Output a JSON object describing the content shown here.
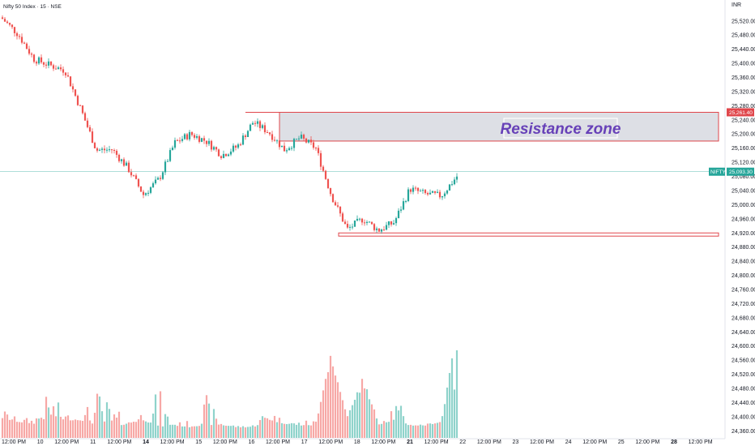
{
  "chart_data": {
    "type": "candlestick",
    "title": "Nifty 50 Index · 15 · NSE",
    "currency": "INR",
    "ylim": [
      24340,
      25570
    ],
    "y_ticks": [
      25520,
      25480,
      25440,
      25400,
      25360,
      25320,
      25280,
      25240,
      25200,
      25160,
      25120,
      25080,
      25040,
      25000,
      24960,
      24920,
      24880,
      24840,
      24800,
      24760,
      24720,
      24680,
      24640,
      24600,
      24560,
      24520,
      24480,
      24440,
      24400,
      24360
    ],
    "y_tick_labels": [
      "25,520.00",
      "25,480.00",
      "25,440.00",
      "25,400.00",
      "25,360.00",
      "25,320.00",
      "25,280.00",
      "25,240.00",
      "25,200.00",
      "25,160.00",
      "25,120.00",
      "25,080.00",
      "25,040.00",
      "25,000.00",
      "24,960.00",
      "24,920.00",
      "24,880.00",
      "24,840.00",
      "24,800.00",
      "24,760.00",
      "24,720.00",
      "24,680.00",
      "24,640.00",
      "24,600.00",
      "24,560.00",
      "24,520.00",
      "24,480.00",
      "24,440.00",
      "24,400.00",
      "24,360.00"
    ],
    "x_ticks": [
      "12:00 PM",
      "10",
      "12:00 PM",
      "11",
      "12:00 PM",
      "14",
      "12:00 PM",
      "15",
      "12:00 PM",
      "16",
      "12:00 PM",
      "17",
      "12:00 PM",
      "18",
      "12:00 PM",
      "21",
      "12:00 PM",
      "22",
      "12:00 PM",
      "23",
      "12:00 PM",
      "24",
      "12:00 PM",
      "25",
      "12:00 PM",
      "28",
      "12:00 PM"
    ],
    "x_ticks_bold": [
      "14",
      "21",
      "28"
    ],
    "anchors": [
      [
        25530,
        25522
      ],
      [
        25510,
        25455
      ],
      [
        25440,
        25385
      ],
      [
        25395,
        25395
      ],
      [
        25400,
        25360
      ],
      [
        25310,
        25230
      ],
      [
        25160,
        25148
      ],
      [
        25160,
        25152
      ],
      [
        25160,
        25048
      ],
      [
        25030,
        25026
      ],
      [
        25060,
        25085
      ],
      [
        25150,
        25200
      ],
      [
        25200,
        25200
      ],
      [
        25190,
        25170
      ],
      [
        25140,
        25140
      ],
      [
        25150,
        25180
      ],
      [
        25220,
        25248
      ],
      [
        25230,
        25180
      ],
      [
        25160,
        25150
      ],
      [
        25190,
        25190
      ],
      [
        25170,
        25150
      ],
      [
        25060,
        24990
      ],
      [
        24940,
        24920
      ],
      [
        24950,
        24970
      ],
      [
        24925,
        24930
      ],
      [
        24900,
        25000
      ],
      [
        25050,
        25040
      ],
      [
        25020,
        25040
      ],
      [
        25010,
        25040
      ],
      [
        25050,
        25110
      ]
    ],
    "volume_anchors": [
      [
        0.35,
        0.22
      ],
      [
        0.22,
        0.18
      ],
      [
        0.25,
        0.16
      ],
      [
        0.55,
        0.24
      ],
      [
        0.3,
        0.2
      ],
      [
        0.22,
        0.2
      ],
      [
        0.6,
        0.15
      ],
      [
        0.4,
        0.12
      ],
      [
        0.18,
        0.16
      ],
      [
        0.35,
        0.2
      ],
      [
        0.6,
        0.12
      ],
      [
        0.18,
        0.14
      ],
      [
        0.2,
        0.12
      ],
      [
        0.5,
        0.15
      ],
      [
        0.2,
        0.14
      ],
      [
        0.14,
        0.12
      ],
      [
        0.16,
        0.12
      ],
      [
        0.4,
        0.2
      ],
      [
        0.18,
        0.16
      ],
      [
        0.2,
        0.14
      ],
      [
        0.22,
        0.14
      ],
      [
        0.6,
        1.0
      ],
      [
        0.3,
        0.2
      ],
      [
        0.55,
        0.7
      ],
      [
        0.25,
        0.15
      ],
      [
        0.55,
        0.2
      ],
      [
        0.16,
        0.14
      ],
      [
        0.16,
        0.14
      ],
      [
        0.2,
        0.18
      ],
      [
        0.6,
        1.25
      ]
    ],
    "current_price_label": "25,093.30",
    "current_price": 25093.3,
    "ticker_label": "NIFTY",
    "resistance_zone": {
      "label": "Resistance zone",
      "top": 25261.4,
      "bottom": 25180,
      "top_label": "25,261.40"
    },
    "support_zone": {
      "top": 24920,
      "bottom": 24911
    },
    "colors": {
      "up": "#26a69a",
      "down": "#ef5350",
      "up_volume": "#8fd3cb",
      "down_volume": "#f7a8a6",
      "zone_fill": "#d1d4dc",
      "zone_border": "#e0474c",
      "zone_text": "#6741b8",
      "price_line": "#26a69a"
    }
  }
}
